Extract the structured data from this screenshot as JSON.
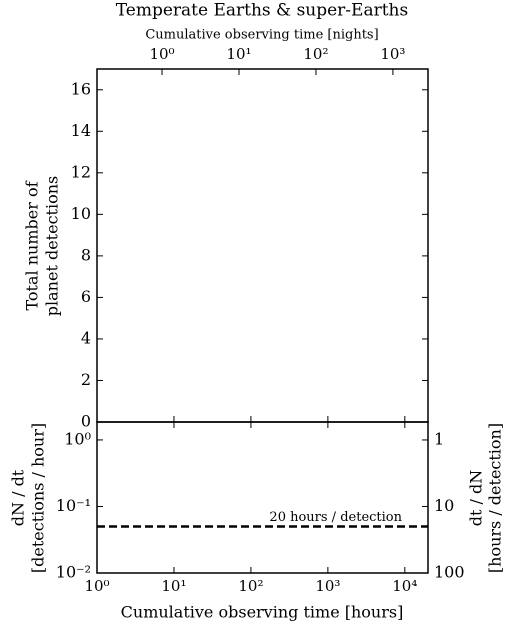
{
  "chart_data": [
    {
      "type": "line",
      "title": "Temperate Earths & super-Earths",
      "x2label": "Cumulative observing time [nights]",
      "x2scale": "log",
      "x2lim": [
        0.1429,
        2857
      ],
      "x2ticks": [
        {
          "value": 1,
          "label": "10⁰"
        },
        {
          "value": 10,
          "label": "10¹"
        },
        {
          "value": 100,
          "label": "10²"
        },
        {
          "value": 1000,
          "label": "10³"
        }
      ],
      "xscale": "log",
      "xlim": [
        1,
        20000
      ],
      "xticks": [
        1,
        10,
        100,
        1000,
        10000
      ],
      "ylabel": [
        "Total number of",
        "planet detections"
      ],
      "ylim": [
        0,
        17
      ],
      "yticks": [
        0,
        2,
        4,
        6,
        8,
        10,
        12,
        14,
        16
      ],
      "series": []
    },
    {
      "type": "line",
      "xlabel": "Cumulative observing time [hours]",
      "xscale": "log",
      "xlim": [
        1,
        20000
      ],
      "xticks": [
        {
          "value": 1,
          "label": "10⁰"
        },
        {
          "value": 10,
          "label": "10¹"
        },
        {
          "value": 100,
          "label": "10²"
        },
        {
          "value": 1000,
          "label": "10³"
        },
        {
          "value": 10000,
          "label": "10⁴"
        }
      ],
      "ylabel": [
        "dN / dt",
        "[detections / hour]"
      ],
      "yscale": "log",
      "ylim": [
        0.01,
        1.86
      ],
      "yticks": [
        {
          "value": 0.01,
          "label": "10⁻²"
        },
        {
          "value": 0.1,
          "label": "10⁻¹"
        },
        {
          "value": 1,
          "label": "10⁰"
        }
      ],
      "y2label": [
        "dt / dN",
        "[hours / detection]"
      ],
      "y2scale": "log",
      "y2lim": [
        100,
        0.537
      ],
      "y2ticks": [
        1,
        10,
        100
      ],
      "hline": {
        "value": 0.05,
        "label": "20 hours / detection",
        "color": "#000000",
        "style": "dashed"
      },
      "series": []
    }
  ]
}
